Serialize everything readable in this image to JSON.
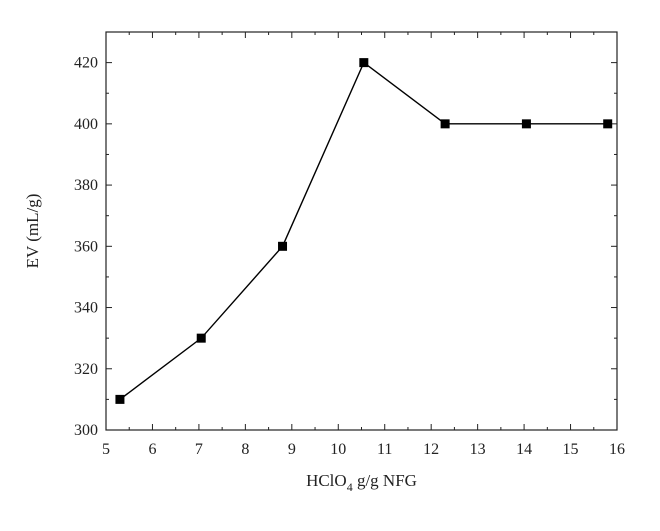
{
  "chart_data": {
    "type": "line",
    "title": "",
    "xlabel": {
      "main": "HClO",
      "subscript": "4",
      "rest": " g/g NFG"
    },
    "ylabel": "EV (mL/g)",
    "xlim": [
      5,
      16
    ],
    "ylim": [
      300,
      430
    ],
    "x_ticks": [
      5,
      6,
      7,
      8,
      9,
      10,
      11,
      12,
      13,
      14,
      15,
      16
    ],
    "y_ticks": [
      300,
      320,
      340,
      360,
      380,
      400,
      420
    ],
    "grid": false,
    "legend": "none",
    "series": [
      {
        "x": [
          5.3,
          7.05,
          8.8,
          10.55,
          12.3,
          14.05,
          15.8
        ],
        "y": [
          310,
          330,
          360,
          420,
          400,
          400,
          400
        ],
        "marker": "square",
        "color": "#000000"
      }
    ]
  }
}
